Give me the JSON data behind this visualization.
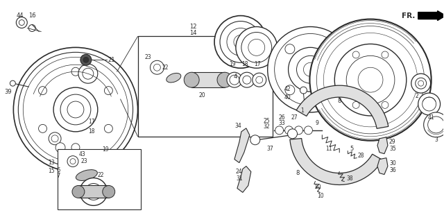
{
  "bg_color": "#ffffff",
  "line_color": "#2a2a2a",
  "fig_width": 6.4,
  "fig_height": 3.1,
  "dpi": 100
}
